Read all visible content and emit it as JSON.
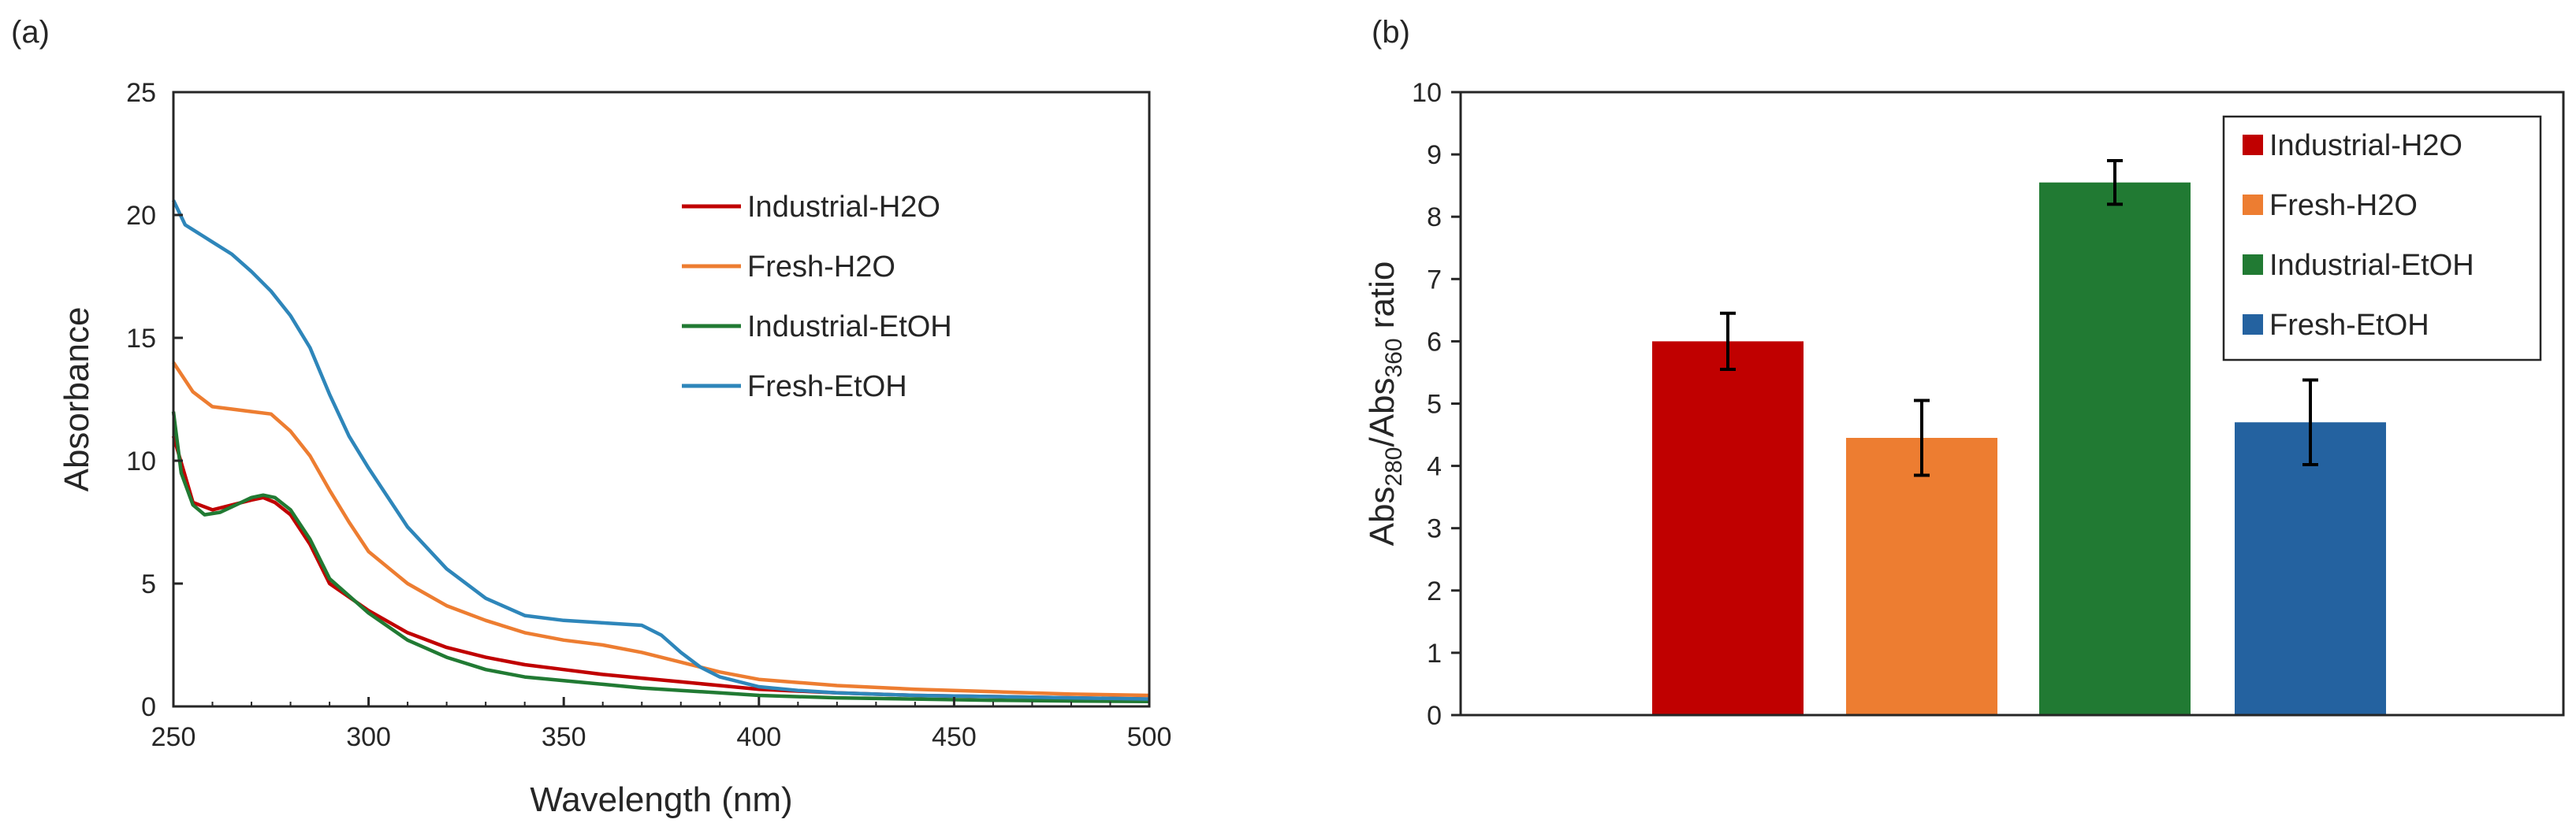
{
  "chart_data": [
    {
      "panel_label": "(a)",
      "type": "line",
      "xlabel": "Wavelength (nm)",
      "ylabel": "Absorbance",
      "xlim": [
        250,
        500
      ],
      "ylim": [
        0,
        25
      ],
      "xticks": [
        250,
        300,
        350,
        400,
        450,
        500
      ],
      "yticks": [
        0,
        5,
        10,
        15,
        20,
        25
      ],
      "grid": false,
      "legend_position": "upper-right",
      "series": [
        {
          "name": "Industrial-H2O",
          "color": "#c00000",
          "x": [
            250,
            255,
            260,
            265,
            270,
            273,
            276,
            280,
            285,
            290,
            300,
            310,
            320,
            330,
            340,
            350,
            360,
            370,
            380,
            390,
            400,
            420,
            440,
            460,
            480,
            500
          ],
          "y": [
            11.0,
            8.3,
            8.0,
            8.2,
            8.4,
            8.5,
            8.3,
            7.8,
            6.6,
            5.0,
            3.9,
            3.0,
            2.4,
            2.0,
            1.7,
            1.5,
            1.3,
            1.15,
            1.0,
            0.85,
            0.7,
            0.55,
            0.45,
            0.4,
            0.35,
            0.3
          ]
        },
        {
          "name": "Fresh-H2O",
          "color": "#ed7d31",
          "x": [
            250,
            255,
            260,
            265,
            270,
            275,
            280,
            285,
            290,
            295,
            300,
            310,
            320,
            330,
            340,
            350,
            360,
            370,
            380,
            390,
            400,
            420,
            440,
            460,
            480,
            500
          ],
          "y": [
            14.0,
            12.8,
            12.2,
            12.1,
            12.0,
            11.9,
            11.2,
            10.2,
            8.8,
            7.5,
            6.3,
            5.0,
            4.1,
            3.5,
            3.0,
            2.7,
            2.5,
            2.2,
            1.8,
            1.4,
            1.1,
            0.85,
            0.7,
            0.6,
            0.5,
            0.45
          ]
        },
        {
          "name": "Industrial-EtOH",
          "color": "#217a33",
          "x": [
            250,
            252,
            255,
            258,
            262,
            266,
            270,
            273,
            276,
            280,
            285,
            290,
            300,
            310,
            320,
            330,
            340,
            350,
            360,
            370,
            380,
            390,
            400,
            420,
            440,
            460,
            480,
            500
          ],
          "y": [
            12.0,
            9.5,
            8.2,
            7.8,
            7.9,
            8.2,
            8.5,
            8.6,
            8.5,
            8.0,
            6.8,
            5.2,
            3.8,
            2.7,
            2.0,
            1.5,
            1.2,
            1.05,
            0.9,
            0.75,
            0.65,
            0.55,
            0.45,
            0.35,
            0.3,
            0.25,
            0.22,
            0.2
          ]
        },
        {
          "name": "Fresh-EtOH",
          "color": "#2e86ba",
          "x": [
            250,
            253,
            256,
            260,
            265,
            270,
            275,
            280,
            285,
            290,
            295,
            300,
            310,
            320,
            330,
            340,
            350,
            360,
            370,
            375,
            380,
            385,
            390,
            400,
            410,
            420,
            440,
            460,
            480,
            500
          ],
          "y": [
            20.6,
            19.6,
            19.3,
            18.9,
            18.4,
            17.7,
            16.9,
            15.9,
            14.6,
            12.7,
            11.0,
            9.7,
            7.3,
            5.6,
            4.4,
            3.7,
            3.5,
            3.4,
            3.3,
            2.9,
            2.2,
            1.6,
            1.2,
            0.8,
            0.65,
            0.55,
            0.45,
            0.4,
            0.35,
            0.3
          ]
        }
      ]
    },
    {
      "panel_label": "(b)",
      "type": "bar",
      "ylabel_main": "Abs",
      "ylabel_sub1": "280",
      "ylabel_mid": "/Abs",
      "ylabel_sub2": "360",
      "ylabel_end": " ratio",
      "ylim": [
        0,
        10
      ],
      "yticks": [
        0,
        1,
        2,
        3,
        4,
        5,
        6,
        7,
        8,
        9,
        10
      ],
      "grid": false,
      "legend_position": "upper-right",
      "categories": [
        "Industrial-H2O",
        "Fresh-H2O",
        "Industrial-EtOH",
        "Fresh-EtOH"
      ],
      "values": [
        6.0,
        4.45,
        8.55,
        4.7
      ],
      "errors": [
        0.45,
        0.6,
        0.35,
        0.68
      ],
      "colors": [
        "#c00000",
        "#ed7d31",
        "#217a33",
        "#2462a0"
      ]
    }
  ]
}
